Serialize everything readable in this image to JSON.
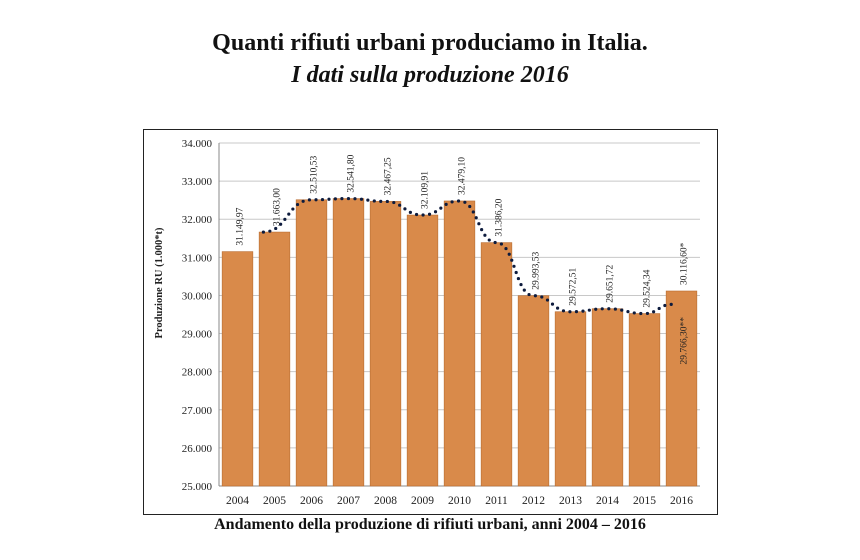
{
  "header": {
    "title": "Quanti rifiuti urbani produciamo in Italia.",
    "subtitle": "I dati sulla produzione 2016"
  },
  "caption": "Andamento della produzione di rifiuti urbani, anni 2004 – 2016",
  "chart_data": {
    "type": "bar",
    "title": "",
    "xlabel": "",
    "ylabel": "Produzione RU (1.000*t)",
    "ylim": [
      25000,
      34000
    ],
    "yticks": [
      25000,
      26000,
      27000,
      28000,
      29000,
      30000,
      31000,
      32000,
      33000,
      34000
    ],
    "ytick_labels": [
      "25.000",
      "26.000",
      "27.000",
      "28.000",
      "29.000",
      "30.000",
      "31.000",
      "32.000",
      "33.000",
      "34.000"
    ],
    "categories": [
      "2004",
      "2005",
      "2006",
      "2007",
      "2008",
      "2009",
      "2010",
      "2011",
      "2012",
      "2013",
      "2014",
      "2015",
      "2016"
    ],
    "values": [
      31149.97,
      31663.0,
      32510.53,
      32541.8,
      32467.25,
      32109.91,
      32479.1,
      31386.2,
      29993.53,
      29572.51,
      29651.72,
      29524.34,
      30116.6
    ],
    "value_labels": [
      "31.149,97",
      "31.663,00",
      "32.510,53",
      "32.541,80",
      "32.467,25",
      "32.109,91",
      "32.479,10",
      "31.386,20",
      "29.993,53",
      "29.572,51",
      "29.651,72",
      "29.524,34",
      "30.116,60*"
    ],
    "trend_line": {
      "style": "dotted",
      "values": [
        null,
        31663.0,
        32510.53,
        32541.8,
        32467.25,
        32109.91,
        32479.1,
        31386.2,
        29993.53,
        29572.51,
        29651.72,
        29524.34,
        29766.3
      ],
      "last_point_label": "29.766,30**"
    },
    "grid": true,
    "legend": "none",
    "colors": {
      "bar": "#d98a4a",
      "bar_edge": "#b86a2e",
      "trend": "#0d1b3d",
      "grid": "#c8c8c8"
    }
  }
}
